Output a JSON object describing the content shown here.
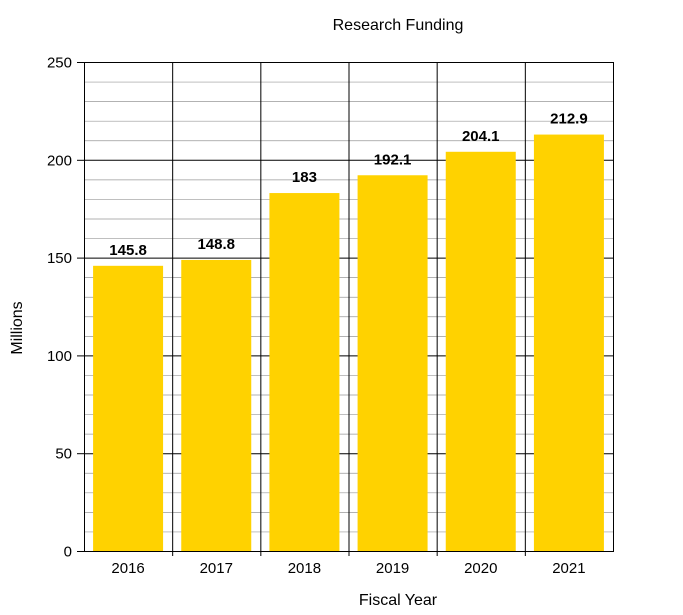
{
  "chart_data": {
    "type": "bar",
    "title": "Research Funding",
    "xlabel": "Fiscal Year",
    "ylabel": "Millions",
    "categories": [
      "2016",
      "2017",
      "2018",
      "2019",
      "2020",
      "2021"
    ],
    "values": [
      145.8,
      148.8,
      183,
      192.1,
      204.1,
      212.9
    ],
    "value_labels": [
      "145.8",
      "148.8",
      "183",
      "192.1",
      "204.1",
      "212.9"
    ],
    "ylim": [
      0,
      250
    ],
    "yticks": [
      0,
      50,
      100,
      150,
      200,
      250
    ],
    "ytick_labels": [
      "0",
      "50",
      "100",
      "150",
      "200",
      "250"
    ],
    "minor_grid_step": 10,
    "grid": true,
    "bar_color": "#FFD200",
    "grid_color": "#999999",
    "legend": "none"
  }
}
